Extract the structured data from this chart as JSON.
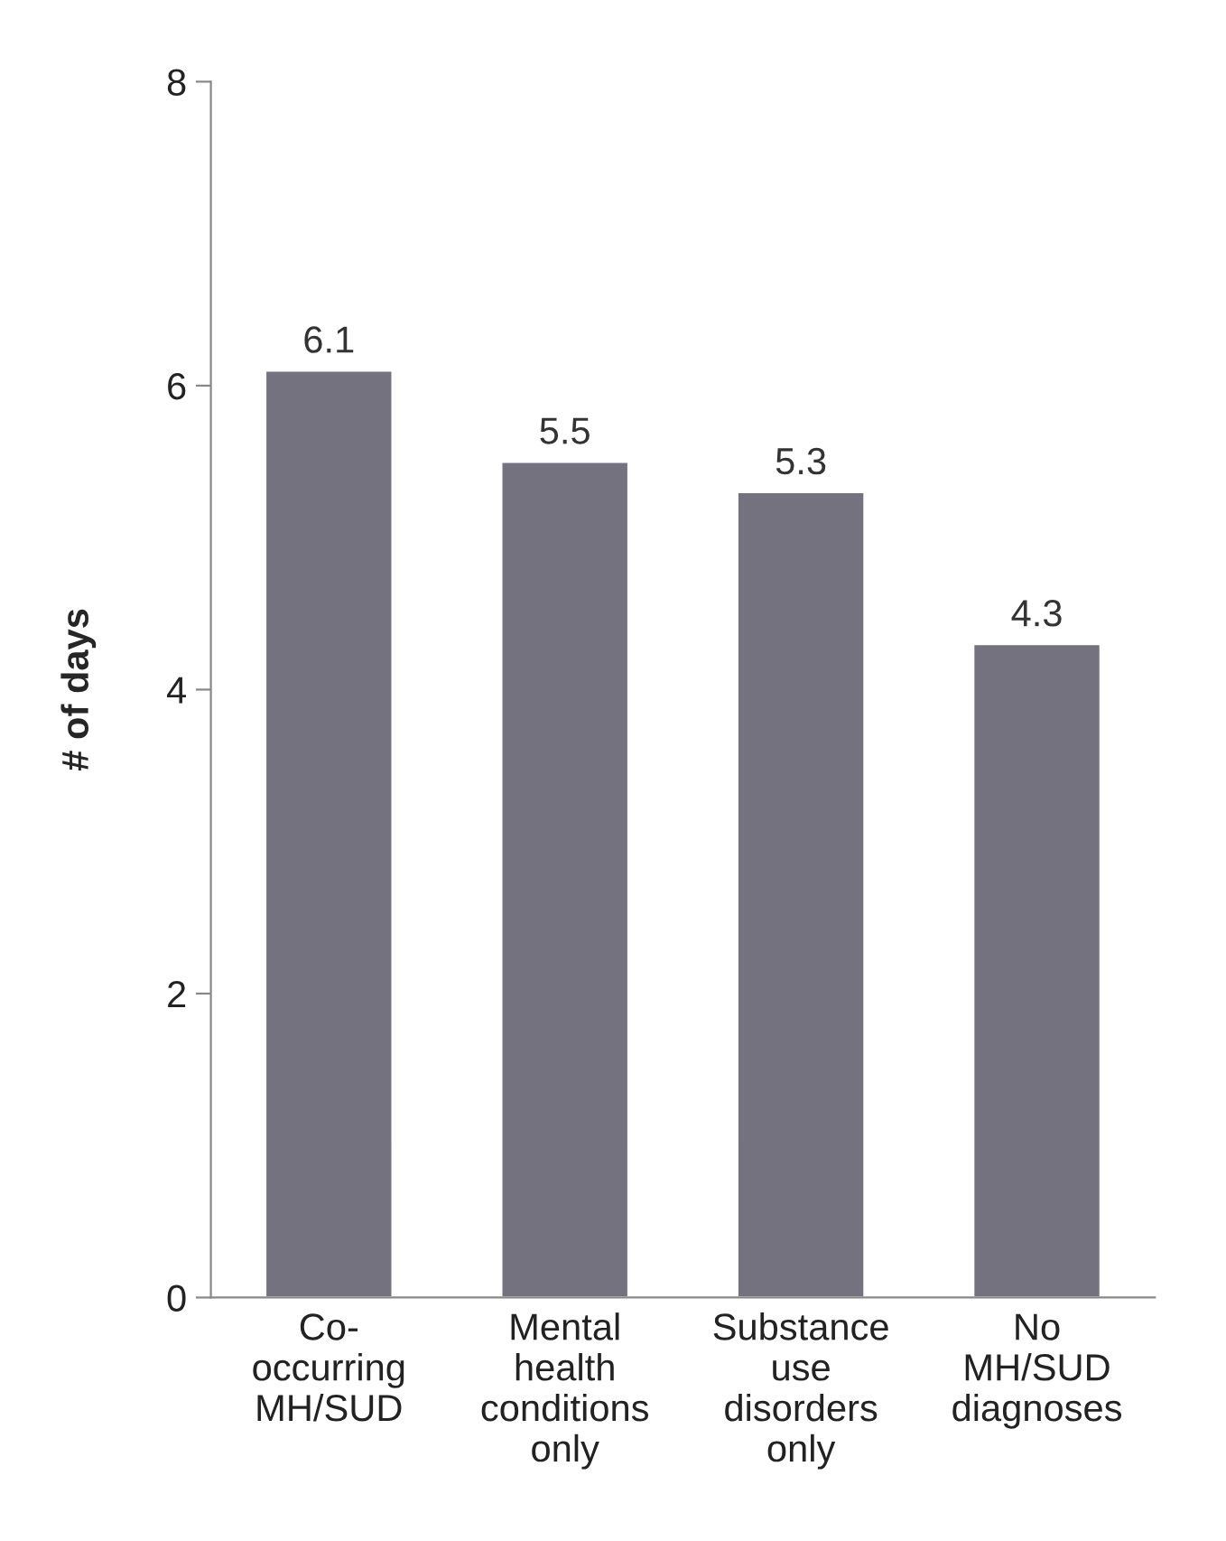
{
  "chart_data": {
    "type": "bar",
    "ylabel": "# of days",
    "categories": [
      "Co-\noccurring\nMH/SUD",
      "Mental\nhealth\nconditions\nonly",
      "Substance\nuse\ndisorders\nonly",
      "No\nMH/SUD\ndiagnoses"
    ],
    "values": [
      6.1,
      5.5,
      5.3,
      4.3
    ],
    "color": "#74727e",
    "ylim": [
      0,
      8
    ],
    "yticks": [
      0,
      2,
      4,
      6,
      8
    ],
    "data_labels": true,
    "grid": false,
    "legend": false
  }
}
